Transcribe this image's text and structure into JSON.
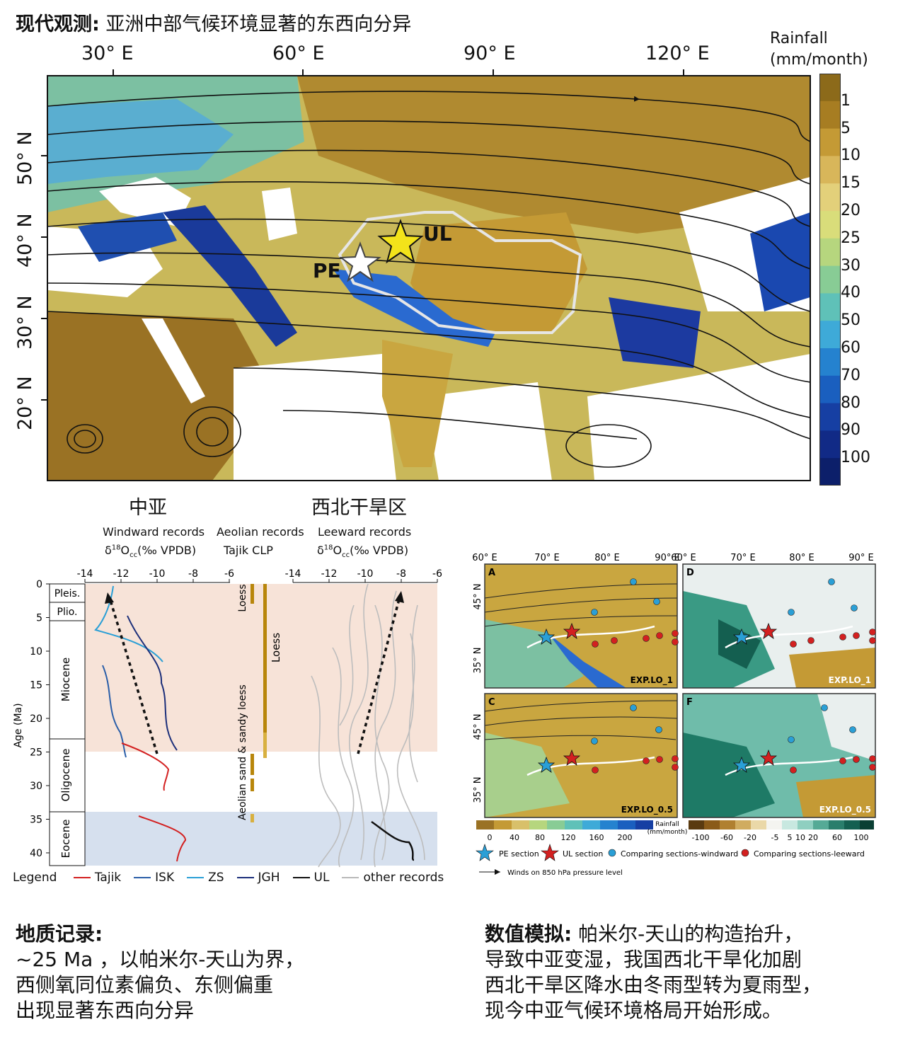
{
  "title": {
    "bold": "现代观测:",
    "rest": " 亚洲中部气候环境显著的东西向分异"
  },
  "map": {
    "lon_labels": [
      "30° E",
      "60° E",
      "90° E",
      "120° E"
    ],
    "lat_labels": [
      "50° N",
      "40° N",
      "30° N",
      "20° N"
    ],
    "site_ul": "UL",
    "site_pe": "PE"
  },
  "colorbar": {
    "title_line1": "Rainfall",
    "title_line2": "(mm/month)",
    "ticks": [
      "1",
      "5",
      "10",
      "15",
      "20",
      "25",
      "30",
      "40",
      "50",
      "60",
      "70",
      "80",
      "90",
      "100"
    ],
    "colors": [
      "#8c6a1a",
      "#a77d22",
      "#c49a35",
      "#d8b65a",
      "#e3d07a",
      "#d9dd7a",
      "#b6d67e",
      "#88cc95",
      "#5fc1b8",
      "#3eaad8",
      "#2582cf",
      "#1a5fbf",
      "#163fa3",
      "#112a86",
      "#0c1f6a"
    ]
  },
  "regions": {
    "left": "中亚",
    "right": "西北干旱区"
  },
  "records": {
    "windward": "Windward records",
    "windward_unit_prefix": "δ",
    "windward_unit_sup": "18",
    "windward_unit_rest": "O",
    "windward_unit_sub": "cc",
    "windward_unit_tail": "(‰ VPDB)",
    "aeolian": "Aeolian records",
    "aeolian_sub": "Tajik   CLP",
    "leeward": "Leeward records",
    "leeward_unit_prefix": "δ",
    "leeward_unit_sup": "18",
    "leeward_unit_rest": "O",
    "leeward_unit_sub": "cc",
    "leeward_unit_tail": "(‰ VPDB)"
  },
  "strat": {
    "axis_label": "Age (Ma)",
    "age_ticks": [
      "0",
      "5",
      "10",
      "15",
      "20",
      "25",
      "30",
      "35",
      "40"
    ],
    "x_ticks": [
      "-14",
      "-12",
      "-10",
      "-8",
      "-6"
    ],
    "epochs": [
      "Pleis.",
      "Plio.",
      "Miocene",
      "Oligocene",
      "Eocene"
    ],
    "loess_labels": [
      "Loess",
      "Loess",
      "Aeolian sand & sandy loess"
    ]
  },
  "legend": {
    "title": "Legend",
    "items": [
      {
        "label": "Tajik",
        "color": "#d32020"
      },
      {
        "label": "ISK",
        "color": "#2a5ea8"
      },
      {
        "label": "ZS",
        "color": "#2a9fd6"
      },
      {
        "label": "JGH",
        "color": "#1c2f7a"
      },
      {
        "label": "UL",
        "color": "#111111"
      },
      {
        "label": "other records",
        "color": "#b9b9b9"
      }
    ]
  },
  "model": {
    "lon_ticks": [
      "60° E",
      "70° E",
      "80° E",
      "90° E",
      "60° E",
      "70° E",
      "80° E",
      "90° E"
    ],
    "lat_ticks": [
      "45° N",
      "35° N",
      "45° N",
      "35° N"
    ],
    "panels": [
      {
        "letter": "A",
        "label": "EXP.LO_1"
      },
      {
        "letter": "D",
        "label": "EXP.LO_1"
      },
      {
        "letter": "C",
        "label": "EXP.LO_0.5"
      },
      {
        "letter": "F",
        "label": "EXP.LO_0.5"
      }
    ],
    "rain_ticks": [
      "0",
      "40",
      "80",
      "120",
      "160",
      "200"
    ],
    "rain_unit1": "Rainfall",
    "rain_unit2": "(mm/month)",
    "diff_ticks": [
      "-100",
      "-60",
      "-20",
      "-5",
      "5",
      "10",
      "20",
      "60",
      "100"
    ],
    "legend_pe": "PE section",
    "legend_ul": "UL section",
    "legend_windward": "Comparing sections-windward",
    "legend_leeward": "Comparing sections-leeward",
    "legend_wind": "Winds on 850 hPa  pressure level"
  },
  "bottom_left": {
    "head": "地质记录:",
    "lines": [
      "~25 Ma ，以帕米尔-天山为界，",
      "西侧氧同位素偏负、东侧偏重",
      "出现显著东西向分异"
    ]
  },
  "bottom_right": {
    "head": "数值模拟:",
    "head_rest": " 帕米尔-天山的构造抬升，",
    "lines": [
      "导致中亚变湿，我国西北干旱化加剧",
      "西北干旱区降水由冬雨型转为夏雨型，",
      "现今中亚气候环境格局开始形成。"
    ]
  }
}
